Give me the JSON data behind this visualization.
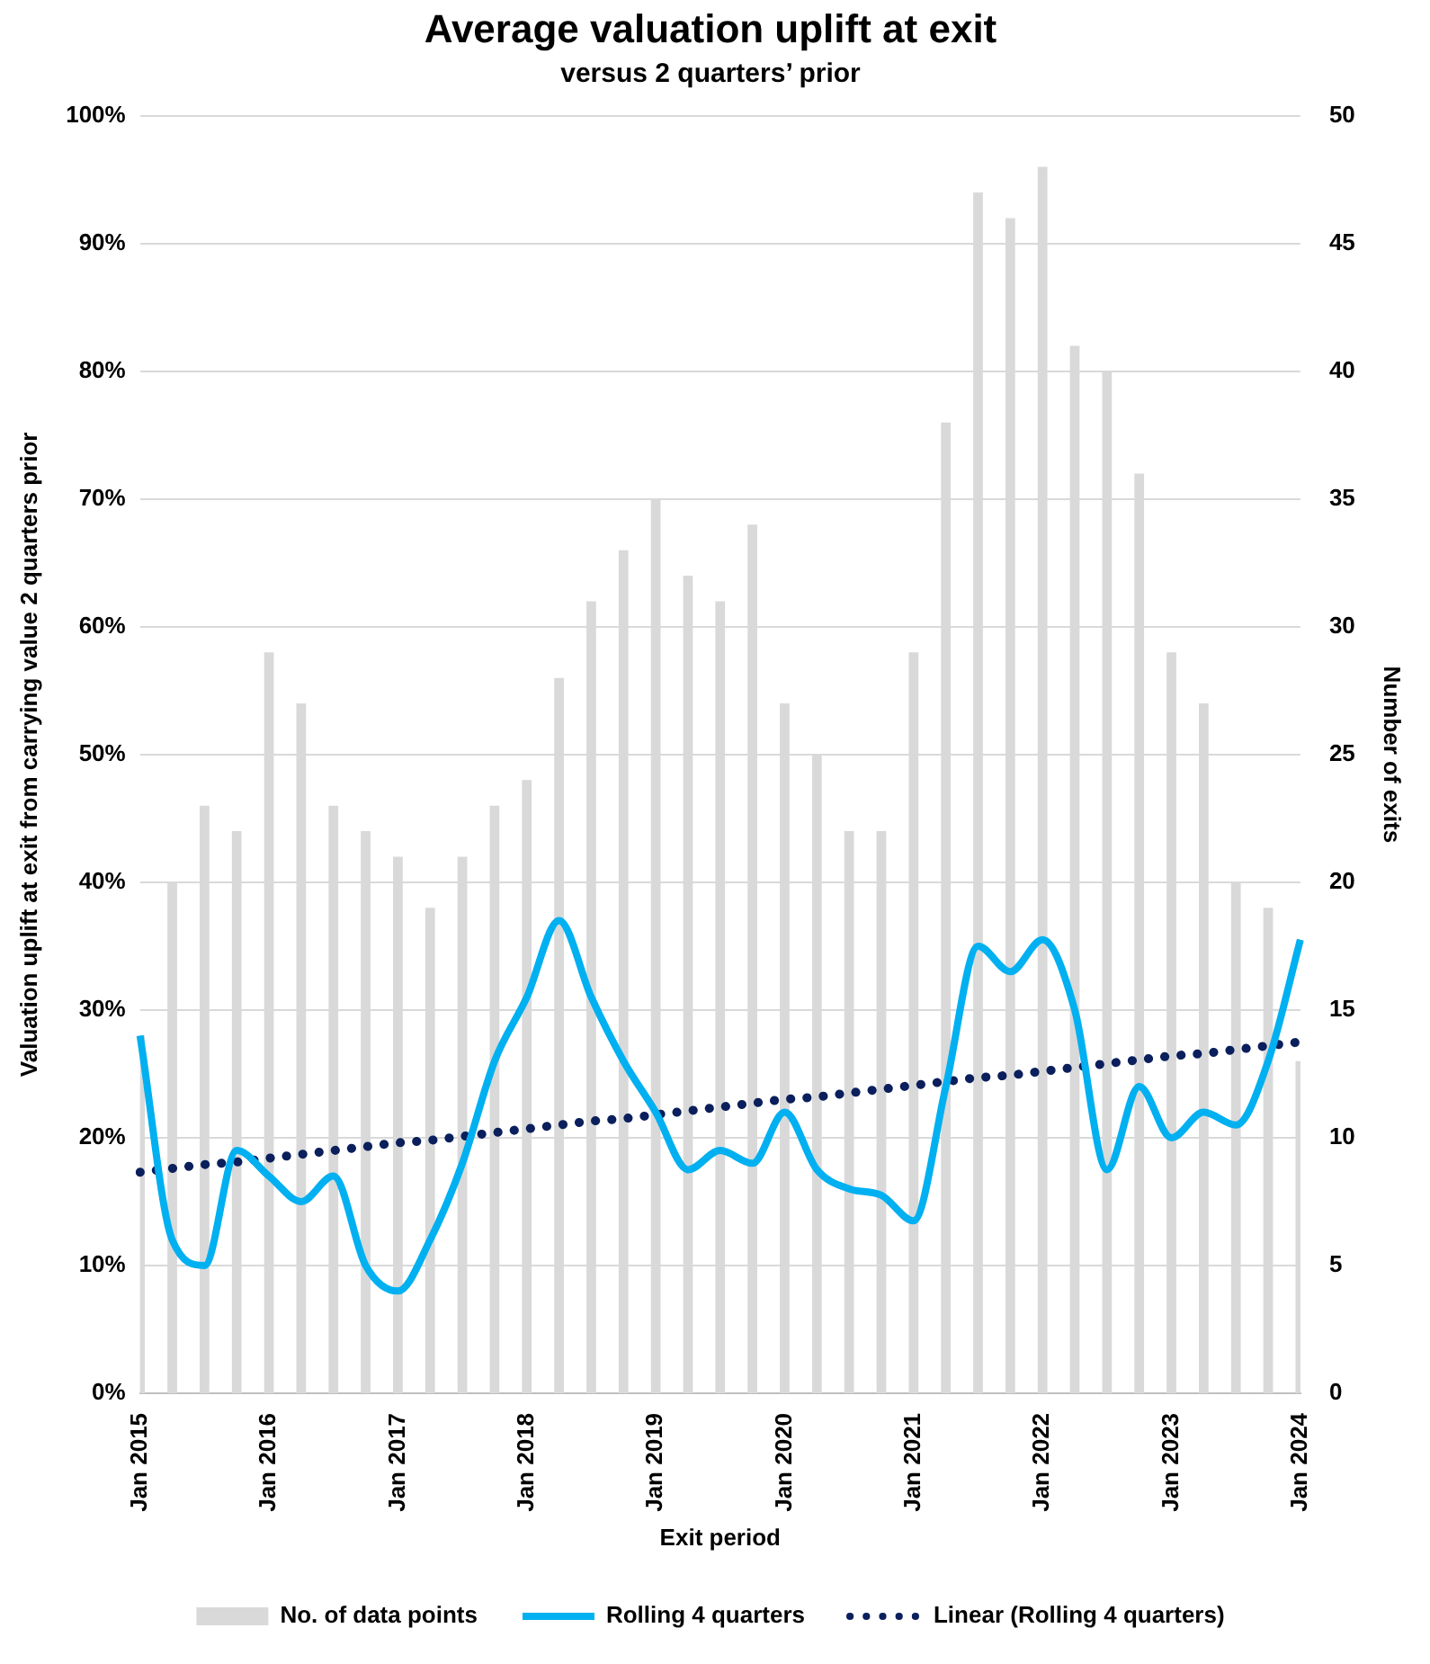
{
  "chart_data": {
    "type": "bar",
    "title": "Average valuation uplift at exit",
    "subtitle": "versus 2 quarters’ prior",
    "xlabel": "Exit period",
    "ylabel": "Valuation uplift at exit from carrying value 2 quarters prior",
    "y2label": "Number of exits",
    "categories": [
      "Jan 2015",
      null,
      null,
      null,
      "Jan 2016",
      null,
      null,
      null,
      "Jan 2017",
      null,
      null,
      null,
      "Jan 2018",
      null,
      null,
      null,
      "Jan 2019",
      null,
      null,
      null,
      "Jan 2020",
      null,
      null,
      null,
      "Jan 2021",
      null,
      null,
      null,
      "Jan 2022",
      null,
      null,
      null,
      "Jan 2023",
      null,
      null,
      null,
      "Jan 2024"
    ],
    "series": [
      {
        "name": "No. of data points",
        "axis": "y2",
        "color": "#d9d9d9",
        "values": [
          14,
          20,
          23,
          22,
          29,
          27,
          23,
          22,
          21,
          19,
          21,
          23,
          24,
          28,
          31,
          33,
          35,
          32,
          31,
          34,
          27,
          25,
          22,
          22,
          29,
          38,
          47,
          46,
          48,
          41,
          40,
          36,
          29,
          27,
          20,
          19,
          13
        ]
      },
      {
        "name": "Rolling 4 quarters",
        "type": "line",
        "axis": "y",
        "color": "#00b0f0",
        "line_style": "solid",
        "values": [
          28,
          12,
          10,
          19,
          17,
          15,
          17,
          10,
          8,
          12,
          18,
          26,
          31,
          37,
          31,
          26,
          22,
          17.5,
          19,
          18,
          22,
          17.5,
          16,
          15.5,
          13.5,
          24,
          35,
          33,
          35.5,
          30,
          17.5,
          24,
          20,
          22,
          21,
          26,
          35.5
        ]
      },
      {
        "name": "Linear (Rolling 4 quarters)",
        "type": "line",
        "axis": "y",
        "color": "#0a1f5c",
        "line_style": "dotted",
        "values": [
          17.3,
          17.6,
          17.9,
          18.1,
          18.4,
          18.7,
          19.0,
          19.3,
          19.6,
          19.8,
          20.1,
          20.4,
          20.7,
          21.0,
          21.3,
          21.5,
          21.8,
          22.1,
          22.4,
          22.7,
          23.0,
          23.2,
          23.5,
          23.8,
          24.1,
          24.4,
          24.7,
          24.9,
          25.2,
          25.5,
          25.8,
          26.1,
          26.4,
          26.6,
          26.9,
          27.2,
          27.5
        ]
      }
    ],
    "ylim": [
      0,
      100
    ],
    "yticks": [
      {
        "value": 0,
        "label": "0%"
      },
      {
        "value": 10,
        "label": "10%"
      },
      {
        "value": 20,
        "label": "20%"
      },
      {
        "value": 30,
        "label": "30%"
      },
      {
        "value": 40,
        "label": "40%"
      },
      {
        "value": 50,
        "label": "50%"
      },
      {
        "value": 60,
        "label": "60%"
      },
      {
        "value": 70,
        "label": "70%"
      },
      {
        "value": 80,
        "label": "80%"
      },
      {
        "value": 90,
        "label": "90%"
      },
      {
        "value": 100,
        "label": "100%"
      }
    ],
    "y2lim": [
      0,
      50
    ],
    "y2ticks": [
      0,
      5,
      10,
      15,
      20,
      25,
      30,
      35,
      40,
      45,
      50
    ],
    "grid": "y",
    "legend": "bottom",
    "marker": "none"
  }
}
